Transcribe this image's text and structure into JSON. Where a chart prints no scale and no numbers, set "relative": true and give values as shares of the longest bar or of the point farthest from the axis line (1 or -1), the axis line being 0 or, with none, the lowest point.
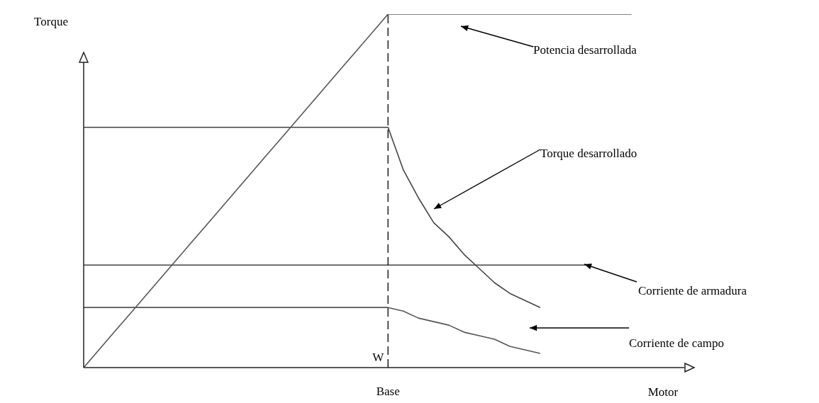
{
  "chart_data": {
    "type": "line",
    "relative": true,
    "ylabel": "Torque",
    "xlabel": "Motor",
    "marker": "none",
    "line_style": "solid",
    "legend": false,
    "categories": [
      null,
      null,
      null,
      null,
      null,
      null,
      null,
      null,
      null,
      null,
      null,
      null,
      null,
      null,
      null,
      null,
      null,
      null,
      null,
      null,
      null,
      null,
      null,
      null,
      null,
      null,
      null,
      null,
      null,
      null,
      null,
      null,
      null,
      null,
      null,
      null,
      null,
      null,
      null,
      null
    ],
    "series": [
      {
        "name": "Potencia desarrollada",
        "color": "#555555",
        "values": [
          0,
          0.05,
          0.1,
          0.15,
          0.2,
          0.25,
          0.3,
          0.35,
          0.4,
          0.45,
          0.5,
          0.55,
          0.6,
          0.65,
          0.7,
          0.75,
          0.8,
          0.85,
          0.9,
          0.95,
          1,
          1,
          1,
          1,
          1,
          1,
          1,
          1,
          1,
          1,
          1,
          1,
          1,
          1,
          1,
          1,
          1,
          null,
          null,
          null
        ]
      },
      {
        "name": "Torque desarrollado",
        "color": "#444444",
        "values": [
          0.68,
          0.68,
          0.68,
          0.68,
          0.68,
          0.68,
          0.68,
          0.68,
          0.68,
          0.68,
          0.68,
          0.68,
          0.68,
          0.68,
          0.68,
          0.68,
          0.68,
          0.68,
          0.68,
          0.68,
          0.68,
          0.56,
          0.48,
          0.41,
          0.37,
          0.32,
          0.28,
          0.24,
          0.21,
          0.19,
          0.17,
          null,
          null,
          null,
          null,
          null,
          null,
          null,
          null,
          null
        ]
      },
      {
        "name": "Corriente de armadura",
        "color": "#444444",
        "values": [
          0.29,
          0.29,
          0.29,
          0.29,
          0.29,
          0.29,
          0.29,
          0.29,
          0.29,
          0.29,
          0.29,
          0.29,
          0.29,
          0.29,
          0.29,
          0.29,
          0.29,
          0.29,
          0.29,
          0.29,
          0.29,
          0.29,
          0.29,
          0.29,
          0.29,
          0.29,
          0.29,
          0.29,
          0.29,
          0.29,
          0.29,
          0.29,
          0.29,
          0.29,
          null,
          null,
          null,
          null,
          null,
          null
        ]
      },
      {
        "name": "Corriente de campo",
        "color": "#555555",
        "values": [
          0.17,
          0.17,
          0.17,
          0.17,
          0.17,
          0.17,
          0.17,
          0.17,
          0.17,
          0.17,
          0.17,
          0.17,
          0.17,
          0.17,
          0.17,
          0.17,
          0.17,
          0.17,
          0.17,
          0.17,
          0.17,
          0.16,
          0.14,
          0.13,
          0.12,
          0.1,
          0.09,
          0.08,
          0.06,
          0.05,
          0.04,
          null,
          null,
          null,
          null,
          null,
          null,
          null,
          null,
          null
        ]
      }
    ],
    "ref_lines": [
      {
        "axis": "x",
        "value": "Base",
        "label": "W",
        "line_style": "dashed",
        "color": "#222222"
      }
    ]
  }
}
